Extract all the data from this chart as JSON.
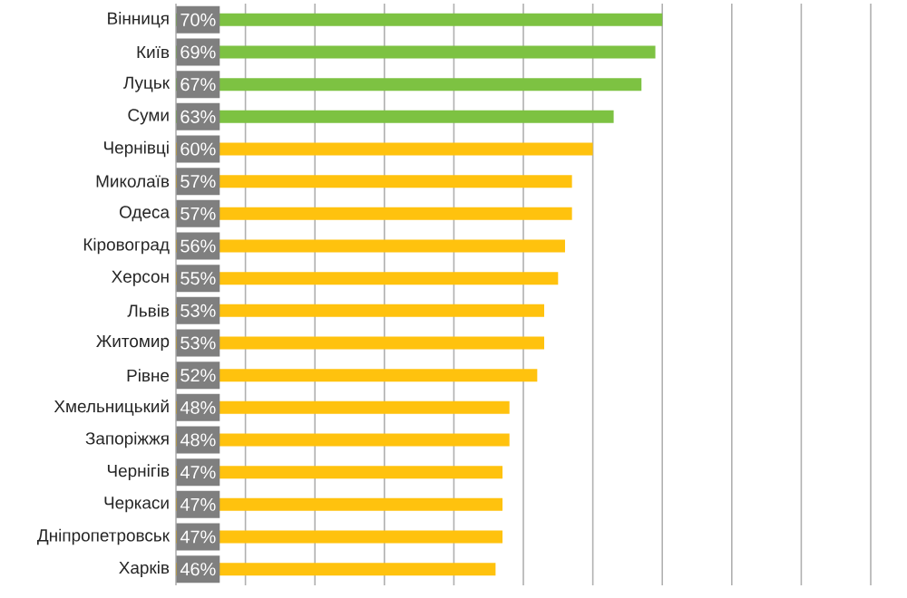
{
  "chart_data": {
    "type": "bar",
    "orientation": "horizontal",
    "categories": [
      "Вінниця",
      "Київ",
      "Луцьк",
      "Суми",
      "Чернівці",
      "Миколаїв",
      "Одеса",
      "Кіровоград",
      "Херсон",
      "Львів",
      "Житомир",
      "Рівне",
      "Хмельницький",
      "Запоріжжя",
      "Чернігів",
      "Черкаси",
      "Дніпропетровськ",
      "Харків"
    ],
    "values": [
      70,
      69,
      67,
      63,
      60,
      57,
      57,
      56,
      55,
      53,
      53,
      52,
      48,
      48,
      47,
      47,
      47,
      46
    ],
    "value_labels": [
      "70%",
      "69%",
      "67%",
      "63%",
      "60%",
      "57%",
      "57%",
      "56%",
      "55%",
      "53%",
      "53%",
      "52%",
      "48%",
      "48%",
      "47%",
      "47%",
      "47%",
      "46%"
    ],
    "colors": [
      "#7dc242",
      "#7dc242",
      "#7dc242",
      "#7dc242",
      "#ffc20e",
      "#ffc20e",
      "#ffc20e",
      "#ffc20e",
      "#ffc20e",
      "#ffc20e",
      "#ffc20e",
      "#ffc20e",
      "#ffc20e",
      "#ffc20e",
      "#ffc20e",
      "#ffc20e",
      "#ffc20e",
      "#ffc20e"
    ],
    "xlim": [
      0,
      100
    ],
    "xticks": [
      {
        "value": 0,
        "label": null
      },
      {
        "value": 10,
        "label": null
      },
      {
        "value": 20,
        "label": null
      },
      {
        "value": 30,
        "label": null
      },
      {
        "value": 40,
        "label": null
      },
      {
        "value": 50,
        "label": null
      },
      {
        "value": 60,
        "label": null
      },
      {
        "value": 70,
        "label": null
      },
      {
        "value": 80,
        "label": null
      },
      {
        "value": 90,
        "label": null
      },
      {
        "value": 100,
        "label": null
      }
    ],
    "grid": "x",
    "tick_labels": "y"
  }
}
